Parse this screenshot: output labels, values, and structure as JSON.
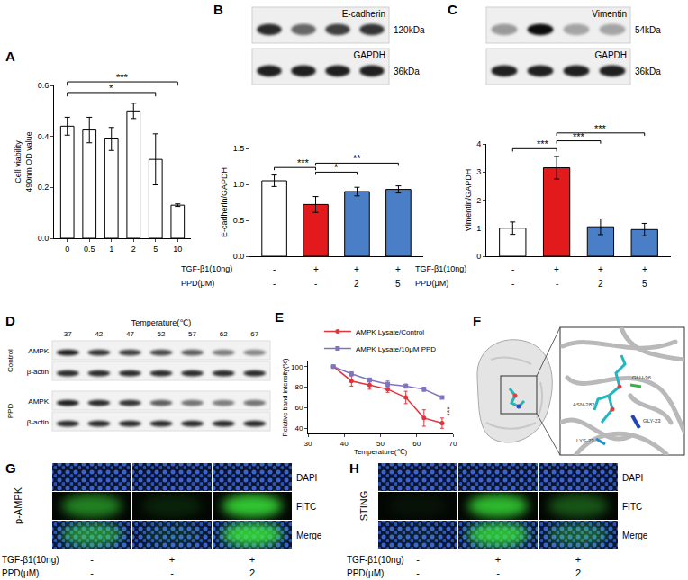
{
  "chart_data": [
    {
      "type": "bar",
      "title": "A",
      "categories": [
        "0",
        "0.5",
        "1",
        "2",
        "5",
        "10"
      ],
      "values": [
        0.44,
        0.425,
        0.39,
        0.5,
        0.31,
        0.13
      ],
      "errors": [
        0.035,
        0.05,
        0.045,
        0.03,
        0.1,
        0.005
      ],
      "colors": [
        "#ffffff",
        "#ffffff",
        "#ffffff",
        "#ffffff",
        "#ffffff",
        "#ffffff"
      ],
      "y_label": "Cell viability\n490nm OD value",
      "ylim": [
        0,
        0.6
      ],
      "yticks": [
        {
          "value": 0,
          "label": "0.0"
        },
        0.2,
        0.4,
        0.6
      ],
      "grid": false,
      "brackets": [
        {
          "from": 0,
          "to": 4,
          "text": "*"
        },
        {
          "from": 0,
          "to": 5,
          "text": "***"
        }
      ]
    },
    {
      "type": "bar",
      "title": "B",
      "categories": [
        null,
        null,
        null,
        null
      ],
      "values": [
        1.05,
        0.72,
        0.9,
        0.93
      ],
      "errors": [
        0.08,
        0.11,
        0.06,
        0.05
      ],
      "colors": [
        "#ffffff",
        "#e31a1c",
        "#4a7fc8",
        "#4a7fc8"
      ],
      "y_label": "E-cadherin/GAPDH",
      "ylim": [
        0,
        1.5
      ],
      "yticks": [
        {
          "value": 0,
          "label": "0.0"
        },
        0.5,
        {
          "value": 1,
          "label": "1.0"
        },
        1.5
      ],
      "grid": false,
      "brackets": [
        {
          "from": 0,
          "to": 1,
          "text": "***"
        },
        {
          "from": 1,
          "to": 2,
          "text": "*"
        },
        {
          "from": 1,
          "to": 3,
          "text": "**"
        }
      ],
      "x_table": [
        {
          "label": "TGF-β1(10ng)",
          "values": [
            "-",
            "+",
            "+",
            "+"
          ]
        },
        {
          "label": "PPD(μM)",
          "values": [
            "-",
            "-",
            "2",
            "5"
          ]
        }
      ]
    },
    {
      "type": "bar",
      "title": "C",
      "categories": [
        null,
        null,
        null,
        null
      ],
      "values": [
        1.0,
        3.15,
        1.05,
        0.95
      ],
      "errors": [
        0.22,
        0.4,
        0.28,
        0.22
      ],
      "colors": [
        "#ffffff",
        "#e31a1c",
        "#4a7fc8",
        "#4a7fc8"
      ],
      "y_label": "Vimentin/GAPDH",
      "ylim": [
        0,
        4
      ],
      "yticks": [
        0,
        1,
        2,
        3,
        4
      ],
      "grid": false,
      "brackets": [
        {
          "from": 0,
          "to": 1,
          "text": "***"
        },
        {
          "from": 1,
          "to": 2,
          "text": "***"
        },
        {
          "from": 1,
          "to": 3,
          "text": "***"
        }
      ],
      "x_table": [
        {
          "label": "TGF-β1(10ng)",
          "values": [
            "-",
            "+",
            "+",
            "+"
          ]
        },
        {
          "label": "PPD(μM)",
          "values": [
            "-",
            "-",
            "2",
            "5"
          ]
        }
      ]
    },
    {
      "type": "line",
      "title": "E",
      "x": [
        37,
        42,
        47,
        52,
        57,
        62,
        67
      ],
      "x_label": "Temperature(℃)",
      "y_label": "Relative band intensity(%)",
      "xlim": [
        30,
        70
      ],
      "xticks": [
        30,
        40,
        50,
        60,
        70
      ],
      "ylim": [
        35,
        105
      ],
      "yticks": [
        40,
        60,
        80,
        100
      ],
      "grid": false,
      "legend": "top",
      "series": [
        {
          "name": "AMPK Lysate/Control",
          "color": "#e0343c",
          "marker": "circle",
          "values": [
            100,
            86,
            82,
            78,
            70,
            50,
            45
          ],
          "errors": [
            0,
            5,
            4,
            3,
            6,
            8,
            5
          ]
        },
        {
          "name": "AMPK Lysate/10μM PPD",
          "color": "#8074c0",
          "marker": "square",
          "values": [
            100,
            93,
            87,
            83,
            81,
            78,
            70
          ],
          "errors": [
            0,
            2,
            2,
            3,
            2,
            2,
            1
          ]
        }
      ],
      "annotations": [
        {
          "text": "***",
          "x": 69,
          "y": 57
        }
      ]
    }
  ],
  "blots": [
    {
      "rows": [
        {
          "name": "E-cadherin",
          "size": "120kDa",
          "bands": [
            0.85,
            0.55,
            0.75,
            0.8
          ]
        },
        {
          "name": "GAPDH",
          "size": "36kDa",
          "bands": [
            0.9,
            0.9,
            0.9,
            0.9
          ]
        }
      ]
    },
    {
      "rows": [
        {
          "name": "Vimentin",
          "size": "54kDa",
          "bands": [
            0.3,
            1.0,
            0.25,
            0.25
          ]
        },
        {
          "name": "GAPDH",
          "size": "36kDa",
          "bands": [
            0.9,
            0.9,
            0.9,
            0.9
          ]
        }
      ]
    }
  ],
  "thermal_blot": {
    "letter": "D",
    "title": "Temperature(℃)",
    "lanes": [
      37,
      42,
      47,
      52,
      57,
      62,
      67
    ],
    "groups": [
      {
        "name": "Control",
        "rows": [
          {
            "name": "AMPK",
            "bands": [
              0.9,
              0.8,
              0.75,
              0.7,
              0.6,
              0.45,
              0.4
            ]
          },
          {
            "name": "β-actin",
            "bands": [
              0.85,
              0.85,
              0.85,
              0.85,
              0.85,
              0.85,
              0.85
            ]
          }
        ]
      },
      {
        "name": "PPD",
        "rows": [
          {
            "name": "AMPK",
            "bands": [
              0.9,
              0.85,
              0.8,
              0.6,
              0.5,
              0.45,
              0.5
            ]
          },
          {
            "name": "β-actin",
            "bands": [
              0.85,
              0.85,
              0.85,
              0.85,
              0.85,
              0.85,
              0.85
            ]
          }
        ]
      }
    ]
  },
  "docking": {
    "letter": "F",
    "residues": [
      "GLU-96",
      "ASN-282",
      "GLY-23",
      "LYS-23"
    ]
  },
  "fluorescence": [
    {
      "letter": "G",
      "stain": "p-AMPK",
      "channels": [
        "DAPI",
        "FITC",
        "Merge"
      ],
      "fitc_intensity": [
        0.55,
        0.12,
        0.85
      ],
      "conditions": [
        {
          "label": "TGF-β1(10ng)",
          "values": [
            "-",
            "+",
            "+"
          ]
        },
        {
          "label": "PPD(μM)",
          "values": [
            "-",
            "-",
            "2"
          ]
        }
      ]
    },
    {
      "letter": "H",
      "stain": "STING",
      "channels": [
        "DAPI",
        "FITC",
        "Merge"
      ],
      "fitc_intensity": [
        0.05,
        0.8,
        0.35
      ],
      "conditions": [
        {
          "label": "TGF-β1(10ng)",
          "values": [
            "-",
            "+",
            "+"
          ]
        },
        {
          "label": "PPD(μM)",
          "values": [
            "-",
            "-",
            "2"
          ]
        }
      ]
    }
  ]
}
